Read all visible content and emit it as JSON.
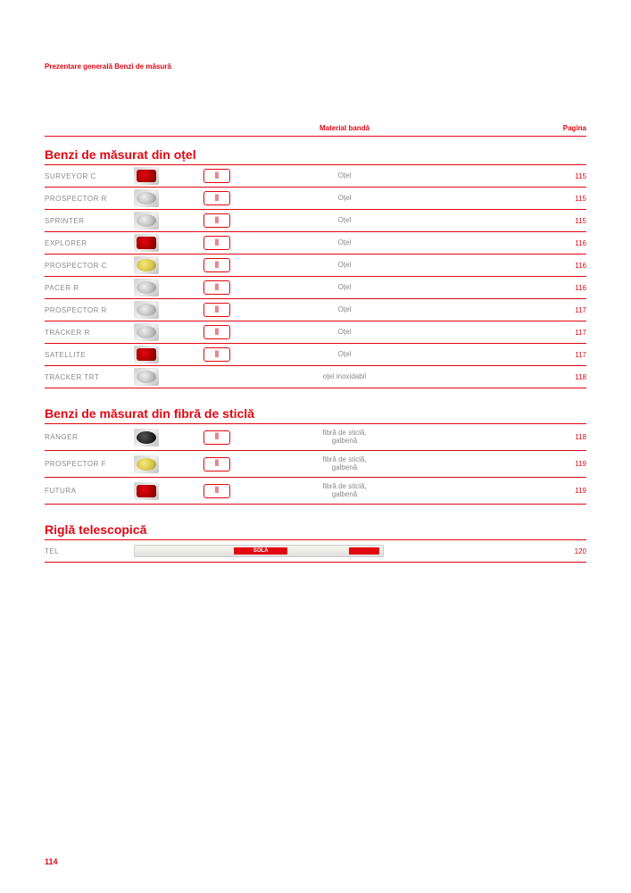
{
  "breadcrumb": "Prezentare generală Benzi de măsură",
  "headers": {
    "material": "Material bandă",
    "page": "Pagina"
  },
  "page_number": "114",
  "sections": [
    {
      "title": "Benzi de măsurat din oțel",
      "rows": [
        {
          "name": "SURVEYOR C",
          "thumb": "red",
          "icon": "class2",
          "material": "Oțel",
          "page": "115"
        },
        {
          "name": "PROSPECTOR R",
          "thumb": "silver",
          "icon": "class2",
          "material": "Oțel",
          "page": "115"
        },
        {
          "name": "SPRINTER",
          "thumb": "silver",
          "icon": "class2",
          "material": "Oțel",
          "page": "115"
        },
        {
          "name": "EXPLORER",
          "thumb": "red",
          "icon": "class2",
          "material": "Oțel",
          "page": "116"
        },
        {
          "name": "PROSPECTOR C",
          "thumb": "yellow",
          "icon": "class2",
          "material": "Oțel",
          "page": "116"
        },
        {
          "name": "PACER R",
          "thumb": "silver",
          "icon": "class2",
          "material": "Oțel",
          "page": "116"
        },
        {
          "name": "PROSPECTOR R",
          "thumb": "silver",
          "icon": "class2",
          "material": "Oțel",
          "page": "117"
        },
        {
          "name": "TRACKER R",
          "thumb": "silver",
          "icon": "class2",
          "material": "Oțel",
          "page": "117"
        },
        {
          "name": "SATELLITE",
          "thumb": "red",
          "icon": "class2",
          "material": "Oțel",
          "page": "117"
        },
        {
          "name": "TRACKER TRT",
          "thumb": "silver",
          "icon": "",
          "material": "oțel inoxidabil",
          "page": "118"
        }
      ]
    },
    {
      "title": "Benzi de măsurat din fibră de sticlă",
      "rows": [
        {
          "name": "RANGER",
          "thumb": "black",
          "icon": "class2",
          "material": "fibră de sticlă,\ngalbenă",
          "page": "118",
          "tall": true
        },
        {
          "name": "PROSPECTOR F",
          "thumb": "yellow",
          "icon": "class2",
          "material": "fibră de sticlă,\ngalbenă",
          "page": "119",
          "tall": true
        },
        {
          "name": "FUTURA",
          "thumb": "red",
          "icon": "class2",
          "material": "fibră de sticlă,\ngalbenă",
          "page": "119",
          "tall": true
        }
      ]
    },
    {
      "title": "Riglă telescopică",
      "rows": [
        {
          "name": "TEL",
          "ruler": true,
          "ruler_label": "SOLA",
          "material": "",
          "page": "120"
        }
      ]
    }
  ]
}
